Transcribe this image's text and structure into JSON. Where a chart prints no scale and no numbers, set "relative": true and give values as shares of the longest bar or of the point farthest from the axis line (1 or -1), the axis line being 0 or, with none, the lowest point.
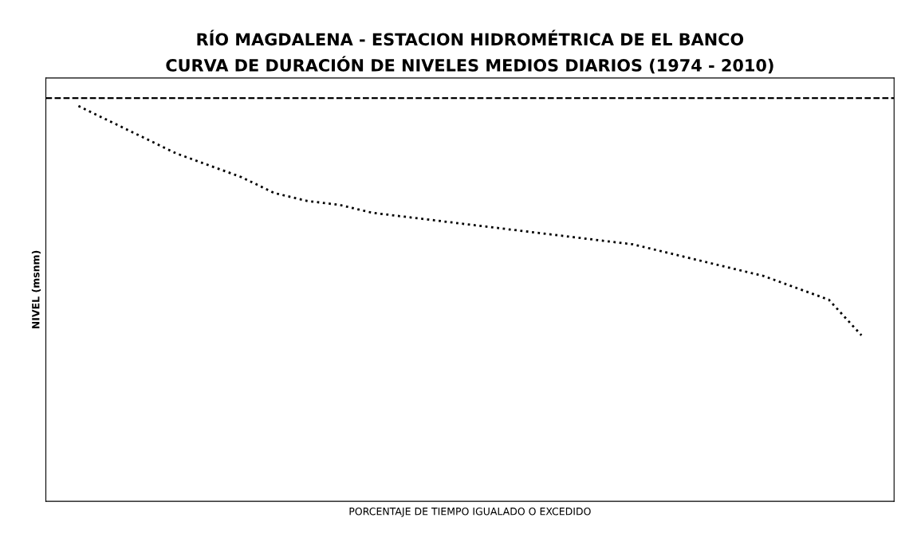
{
  "chart_data": {
    "type": "line",
    "title": "RÍO MAGDALENA - ESTACION HIDROMÉTRICA DE EL BANCO\nCURVA DE DURACIÓN DE NIVELES MEDIOS DIARIOS (1974 - 2010)",
    "xlabel": "PORCENTAJE DE TIEMPO IGUALADO O EXCEDIDO",
    "ylabel": "NIVEL (msnm)",
    "categories": [
      null,
      null,
      null,
      null,
      null,
      null,
      null,
      null,
      null,
      null,
      null,
      null,
      null,
      null,
      null,
      null,
      null,
      null,
      null,
      null,
      null,
      null,
      null,
      null,
      null
    ],
    "relative": true,
    "series": [
      {
        "color": "#000000",
        "values": [
          1.0,
          0.96,
          0.92,
          0.88,
          0.85,
          0.82,
          0.78,
          0.76,
          0.75,
          0.73,
          0.72,
          0.71,
          0.7,
          0.69,
          0.68,
          0.67,
          0.66,
          0.65,
          0.63,
          0.61,
          0.59,
          0.57,
          0.54,
          0.51,
          0.42
        ]
      }
    ],
    "line_style": "dotted",
    "ref_lines": [
      {
        "axis": "y",
        "value": 1.02,
        "color": "#000000",
        "line_style": "dashed"
      }
    ],
    "grid": false,
    "legend": false
  }
}
